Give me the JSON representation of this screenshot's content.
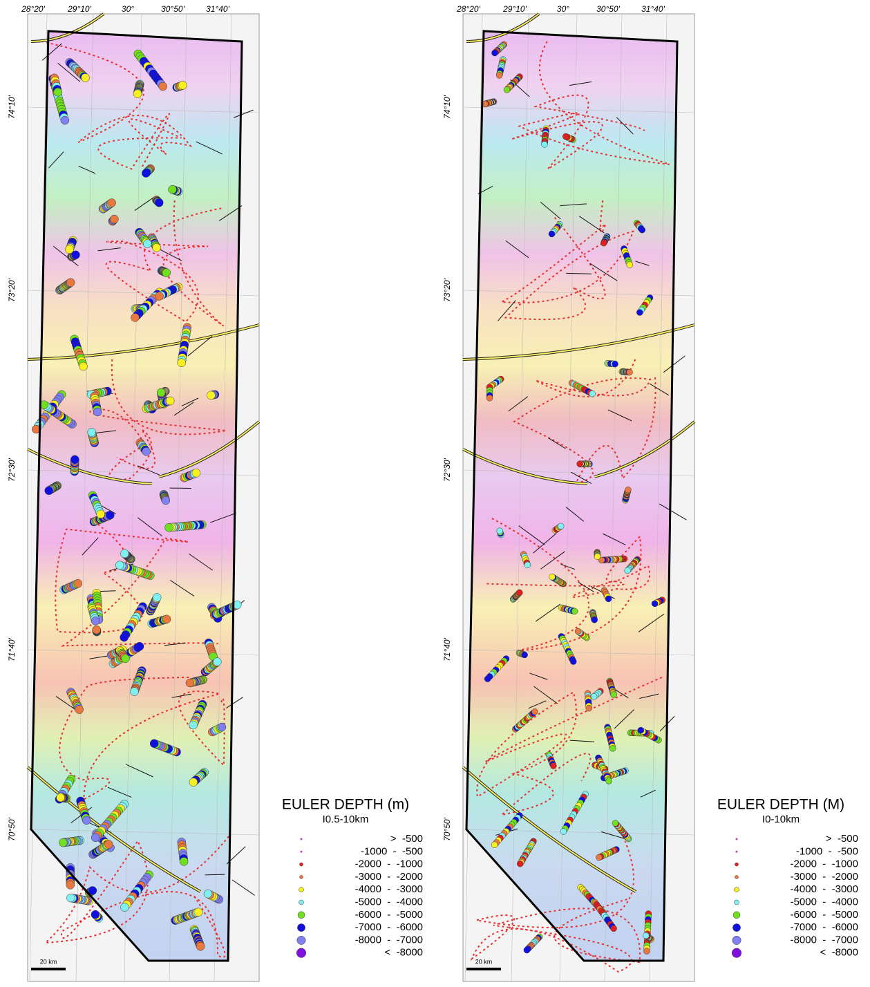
{
  "maps": [
    {
      "lon_labels": [
        "28°20'",
        "29°10'",
        "30°",
        "30°50'",
        "31°40'"
      ],
      "lat_labels": [
        "74°10'",
        "73°20'",
        "72°30'",
        "71°40'",
        "70°50'"
      ],
      "scale_label": "20 km",
      "legend": {
        "title": "EULER DEPTH (m)",
        "subtitle": "I0.5-10km",
        "rows": [
          {
            "label": ">  -500",
            "color": "#c040c0"
          },
          {
            "label": "-1000  -  -500",
            "color": "#c040c0"
          },
          {
            "label": "-2000  -  -1000",
            "color": "#e02020"
          },
          {
            "label": "-3000  -  -2000",
            "color": "#e87840"
          },
          {
            "label": "-4000  -  -3000",
            "color": "#f8f020"
          },
          {
            "label": "-5000  -  -4000",
            "color": "#80f0f0"
          },
          {
            "label": "-6000  -  -5000",
            "color": "#70e020"
          },
          {
            "label": "-7000  -  -6000",
            "color": "#1010e0"
          },
          {
            "label": "-8000  -  -7000",
            "color": "#8080f0"
          },
          {
            "label": "<  -8000",
            "color": "#8010e0"
          }
        ]
      }
    },
    {
      "lon_labels": [
        "28°20'",
        "29°10'",
        "30°",
        "30°50'",
        "31°40'"
      ],
      "lat_labels": [
        "74°10'",
        "73°20'",
        "72°30'",
        "71°40'",
        "70°50'"
      ],
      "scale_label": "20 km",
      "legend": {
        "title": "EULER DEPTH (M)",
        "subtitle": "I0-10km",
        "rows": [
          {
            "label": ">  -500",
            "color": "#c040c0"
          },
          {
            "label": "-1000  -  -500",
            "color": "#c040c0"
          },
          {
            "label": "-2000  -  -1000",
            "color": "#e02020"
          },
          {
            "label": "-3000  -  -2000",
            "color": "#e87840"
          },
          {
            "label": "-4000  -  -3000",
            "color": "#f8f020"
          },
          {
            "label": "-5000  -  -4000",
            "color": "#80f0f0"
          },
          {
            "label": "-6000  -  -5000",
            "color": "#70e020"
          },
          {
            "label": "-7000  -  -6000",
            "color": "#1010e0"
          },
          {
            "label": "-8000  -  -7000",
            "color": "#8080f0"
          },
          {
            "label": "<  -8000",
            "color": "#8010e0"
          }
        ]
      }
    }
  ]
}
